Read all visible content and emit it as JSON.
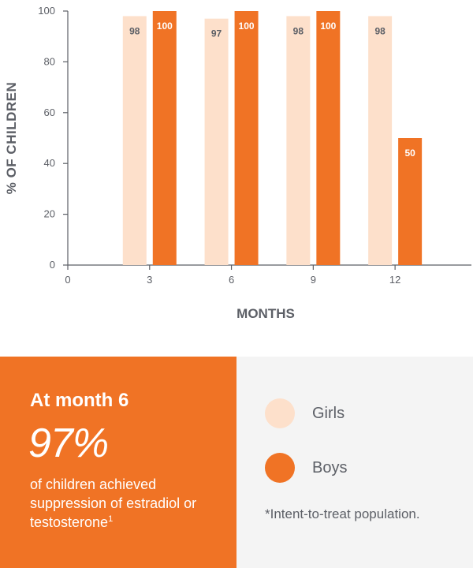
{
  "chart_data": {
    "type": "bar",
    "categories": [
      "3",
      "6",
      "9",
      "12"
    ],
    "x_ticks": [
      "0",
      "3",
      "6",
      "9",
      "12"
    ],
    "y_ticks": [
      0,
      20,
      40,
      60,
      80,
      100
    ],
    "ylim": [
      0,
      100
    ],
    "ylabel": "% OF CHILDREN",
    "xlabel": "MONTHS",
    "grid": false,
    "series": [
      {
        "name": "Girls",
        "color": "#fde0cb",
        "values": [
          98,
          97,
          98,
          98
        ],
        "labels": [
          "98",
          "97",
          "98",
          "98"
        ]
      },
      {
        "name": "Boys",
        "color": "#f07325",
        "values": [
          100,
          100,
          100,
          50
        ],
        "labels": [
          "100",
          "100",
          "100",
          "50"
        ]
      }
    ]
  },
  "highlight": {
    "heading": "At month 6",
    "stat": "97%",
    "description": "of children achieved suppression of estradiol or testosterone",
    "footnote_ref": "1"
  },
  "legend": {
    "items": [
      {
        "label": "Girls",
        "color": "#fde0cb"
      },
      {
        "label": "Boys",
        "color": "#f07325"
      }
    ],
    "note": "*Intent-to-treat population."
  },
  "colors": {
    "accent": "#f07325",
    "light": "#fde0cb",
    "text": "#5c5f66",
    "panel_bg": "#f4f4f4"
  }
}
